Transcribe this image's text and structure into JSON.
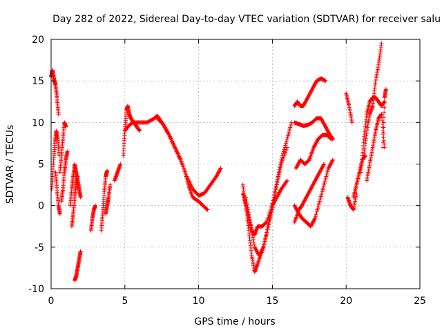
{
  "chart_data": {
    "type": "scatter",
    "title": "Day 282 of 2022, Sidereal Day-to-day VTEC variation (SDTVAR) for receiver salu",
    "xlabel": "GPS time / hours",
    "ylabel": "SDTVAR / TECUs",
    "xlim": [
      0,
      25
    ],
    "ylim": [
      -10,
      20
    ],
    "xticks": [
      0,
      5,
      10,
      15,
      20,
      25
    ],
    "yticks": [
      -10,
      -5,
      0,
      5,
      10,
      15,
      20
    ],
    "xtick_labels": [
      "0",
      "5",
      "10",
      "15",
      "20",
      "25"
    ],
    "ytick_labels": [
      "-10",
      "-5",
      "0",
      "5",
      "10",
      "15",
      "20"
    ],
    "grid": true,
    "legend": "none",
    "marker": "+",
    "series": [
      {
        "name": "SDTVAR",
        "color": "#ff0000",
        "segments": [
          {
            "x": [
              0.0,
              0.1,
              0.2,
              0.3,
              0.4,
              0.5
            ],
            "y": [
              15.5,
              16.3,
              15.2,
              14.5,
              13.0,
              11.0
            ]
          },
          {
            "x": [
              0.05,
              0.15,
              0.25,
              0.35,
              0.45,
              0.55
            ],
            "y": [
              2.0,
              5.0,
              7.5,
              9.0,
              8.0,
              6.0
            ]
          },
          {
            "x": [
              0.3,
              0.4,
              0.5,
              0.6
            ],
            "y": [
              4.0,
              2.0,
              0.0,
              -1.0
            ]
          },
          {
            "x": [
              0.6,
              0.7,
              0.8,
              0.9,
              1.0
            ],
            "y": [
              4.0,
              6.0,
              8.0,
              10.0,
              9.5
            ]
          },
          {
            "x": [
              0.7,
              0.8,
              0.9,
              1.0,
              1.1
            ],
            "y": [
              0.5,
              2.0,
              4.0,
              5.5,
              6.5
            ]
          },
          {
            "x": [
              1.3,
              1.4,
              1.5,
              1.6,
              1.7,
              1.8,
              1.9,
              2.0
            ],
            "y": [
              0.0,
              2.0,
              3.5,
              5.0,
              4.0,
              3.0,
              2.0,
              1.0
            ]
          },
          {
            "x": [
              1.4,
              1.5,
              1.6,
              1.7,
              1.8
            ],
            "y": [
              -2.5,
              -1.0,
              1.0,
              2.5,
              3.5
            ]
          },
          {
            "x": [
              1.6,
              1.7,
              1.8,
              1.9,
              2.0
            ],
            "y": [
              -9.0,
              -8.5,
              -7.5,
              -6.5,
              -5.5
            ]
          },
          {
            "x": [
              2.7,
              2.8,
              2.9,
              3.0
            ],
            "y": [
              -3.0,
              -1.5,
              -0.5,
              0.0
            ]
          },
          {
            "x": [
              3.4,
              3.5,
              3.6,
              3.7,
              3.8
            ],
            "y": [
              -3.0,
              -1.0,
              1.5,
              3.5,
              4.2
            ]
          },
          {
            "x": [
              3.7,
              3.8,
              3.9,
              4.0
            ],
            "y": [
              -1.0,
              0.0,
              1.0,
              2.5
            ]
          },
          {
            "x": [
              4.3,
              4.5,
              4.7
            ],
            "y": [
              3.0,
              4.0,
              5.0
            ]
          },
          {
            "x": [
              4.9,
              5.0,
              5.1,
              5.2,
              5.3,
              5.4,
              5.6,
              5.8,
              6.0
            ],
            "y": [
              6.0,
              9.0,
              11.5,
              12.0,
              11.0,
              10.5,
              10.0,
              9.5,
              9.0
            ]
          },
          {
            "x": [
              5.0,
              5.2,
              5.5,
              6.0,
              6.5,
              7.0,
              7.2,
              7.5,
              8.0,
              8.5,
              9.0,
              9.3,
              9.6,
              10.0,
              10.3,
              10.6
            ],
            "y": [
              9.0,
              9.5,
              10.0,
              10.0,
              10.0,
              10.5,
              10.8,
              10.0,
              8.5,
              6.5,
              4.5,
              2.5,
              1.0,
              0.5,
              0.0,
              -0.5
            ]
          },
          {
            "x": [
              7.2,
              7.6,
              8.0,
              8.4,
              8.8,
              9.2,
              9.6,
              10.0,
              10.4,
              10.8,
              11.2,
              11.5
            ],
            "y": [
              10.5,
              9.8,
              8.5,
              7.0,
              5.5,
              3.5,
              2.0,
              1.2,
              1.5,
              2.5,
              3.5,
              4.5
            ]
          },
          {
            "x": [
              13.0,
              13.2,
              13.4,
              13.6,
              13.8,
              14.0,
              14.3,
              14.6,
              15.0,
              15.3,
              15.6,
              16.0,
              16.3
            ],
            "y": [
              2.5,
              0.0,
              -3.0,
              -6.0,
              -8.0,
              -7.0,
              -5.5,
              -3.5,
              -0.5,
              2.5,
              5.5,
              8.0,
              10.0
            ]
          },
          {
            "x": [
              13.0,
              13.2,
              13.4,
              13.6,
              13.8,
              14.0,
              14.3,
              14.6,
              15.0,
              15.3,
              15.6,
              16.0
            ],
            "y": [
              1.5,
              0.0,
              -1.5,
              -3.0,
              -3.5,
              -2.5,
              -2.5,
              -2.0,
              0.0,
              1.0,
              2.0,
              3.0
            ]
          },
          {
            "x": [
              13.2,
              13.5,
              13.8,
              14.1,
              14.4,
              14.8,
              15.2,
              15.6,
              16.0
            ],
            "y": [
              1.0,
              -2.0,
              -5.0,
              -6.0,
              -5.0,
              -1.5,
              2.0,
              5.0,
              7.0
            ]
          },
          {
            "x": [
              16.5,
              16.7,
              16.9,
              17.1,
              17.4,
              17.7,
              18.0,
              18.3,
              18.6
            ],
            "y": [
              12.0,
              12.5,
              12.0,
              12.0,
              13.0,
              14.0,
              15.0,
              15.3,
              15.0
            ]
          },
          {
            "x": [
              16.5,
              16.8,
              17.1,
              17.4,
              17.7,
              18.0,
              18.3,
              18.6,
              18.9,
              19.1
            ],
            "y": [
              10.0,
              9.8,
              9.6,
              9.7,
              10.0,
              10.5,
              10.5,
              9.5,
              8.5,
              8.0
            ]
          },
          {
            "x": [
              16.5,
              16.8,
              17.0,
              17.3,
              17.6,
              17.9,
              18.2,
              18.5
            ],
            "y": [
              -2.0,
              -0.5,
              0.0,
              1.0,
              2.0,
              3.0,
              4.0,
              5.0
            ]
          },
          {
            "x": [
              16.5,
              16.8,
              17.0,
              17.3,
              17.6,
              17.9,
              18.2,
              18.5,
              18.8,
              19.1
            ],
            "y": [
              0.0,
              -1.0,
              -1.5,
              -2.0,
              -2.5,
              -1.5,
              0.5,
              2.5,
              4.5,
              5.5
            ]
          },
          {
            "x": [
              16.6,
              16.9,
              17.2,
              17.5,
              17.8,
              18.1,
              18.4,
              18.7,
              19.0
            ],
            "y": [
              4.5,
              5.5,
              5.0,
              5.5,
              7.0,
              8.0,
              8.5,
              8.5,
              8.0
            ]
          },
          {
            "x": [
              20.0,
              20.2,
              20.4
            ],
            "y": [
              13.5,
              12.0,
              10.0
            ]
          },
          {
            "x": [
              20.1,
              20.3,
              20.5,
              20.7
            ],
            "y": [
              1.0,
              0.0,
              -0.5,
              1.5
            ]
          },
          {
            "x": [
              20.5,
              20.7,
              20.9,
              21.1,
              21.3
            ],
            "y": [
              1.0,
              2.5,
              4.0,
              5.5,
              6.0
            ]
          },
          {
            "x": [
              21.0,
              21.2,
              21.4,
              21.6,
              21.8,
              22.0,
              22.2,
              22.4,
              22.6
            ],
            "y": [
              4.0,
              8.0,
              11.0,
              12.5,
              13.0,
              13.0,
              12.5,
              12.0,
              12.5
            ]
          },
          {
            "x": [
              21.2,
              21.4,
              21.6,
              21.8,
              22.0,
              22.2,
              22.4
            ],
            "y": [
              6.0,
              9.0,
              11.0,
              12.0,
              15.0,
              17.0,
              19.5
            ]
          },
          {
            "x": [
              21.4,
              21.6,
              21.8,
              22.0,
              22.2,
              22.4,
              22.6
            ],
            "y": [
              3.0,
              5.0,
              7.0,
              9.0,
              10.5,
              11.0,
              7.0
            ]
          },
          {
            "x": [
              22.5,
              22.6,
              22.7
            ],
            "y": [
              7.0,
              13.0,
              14.0
            ]
          }
        ]
      }
    ]
  }
}
